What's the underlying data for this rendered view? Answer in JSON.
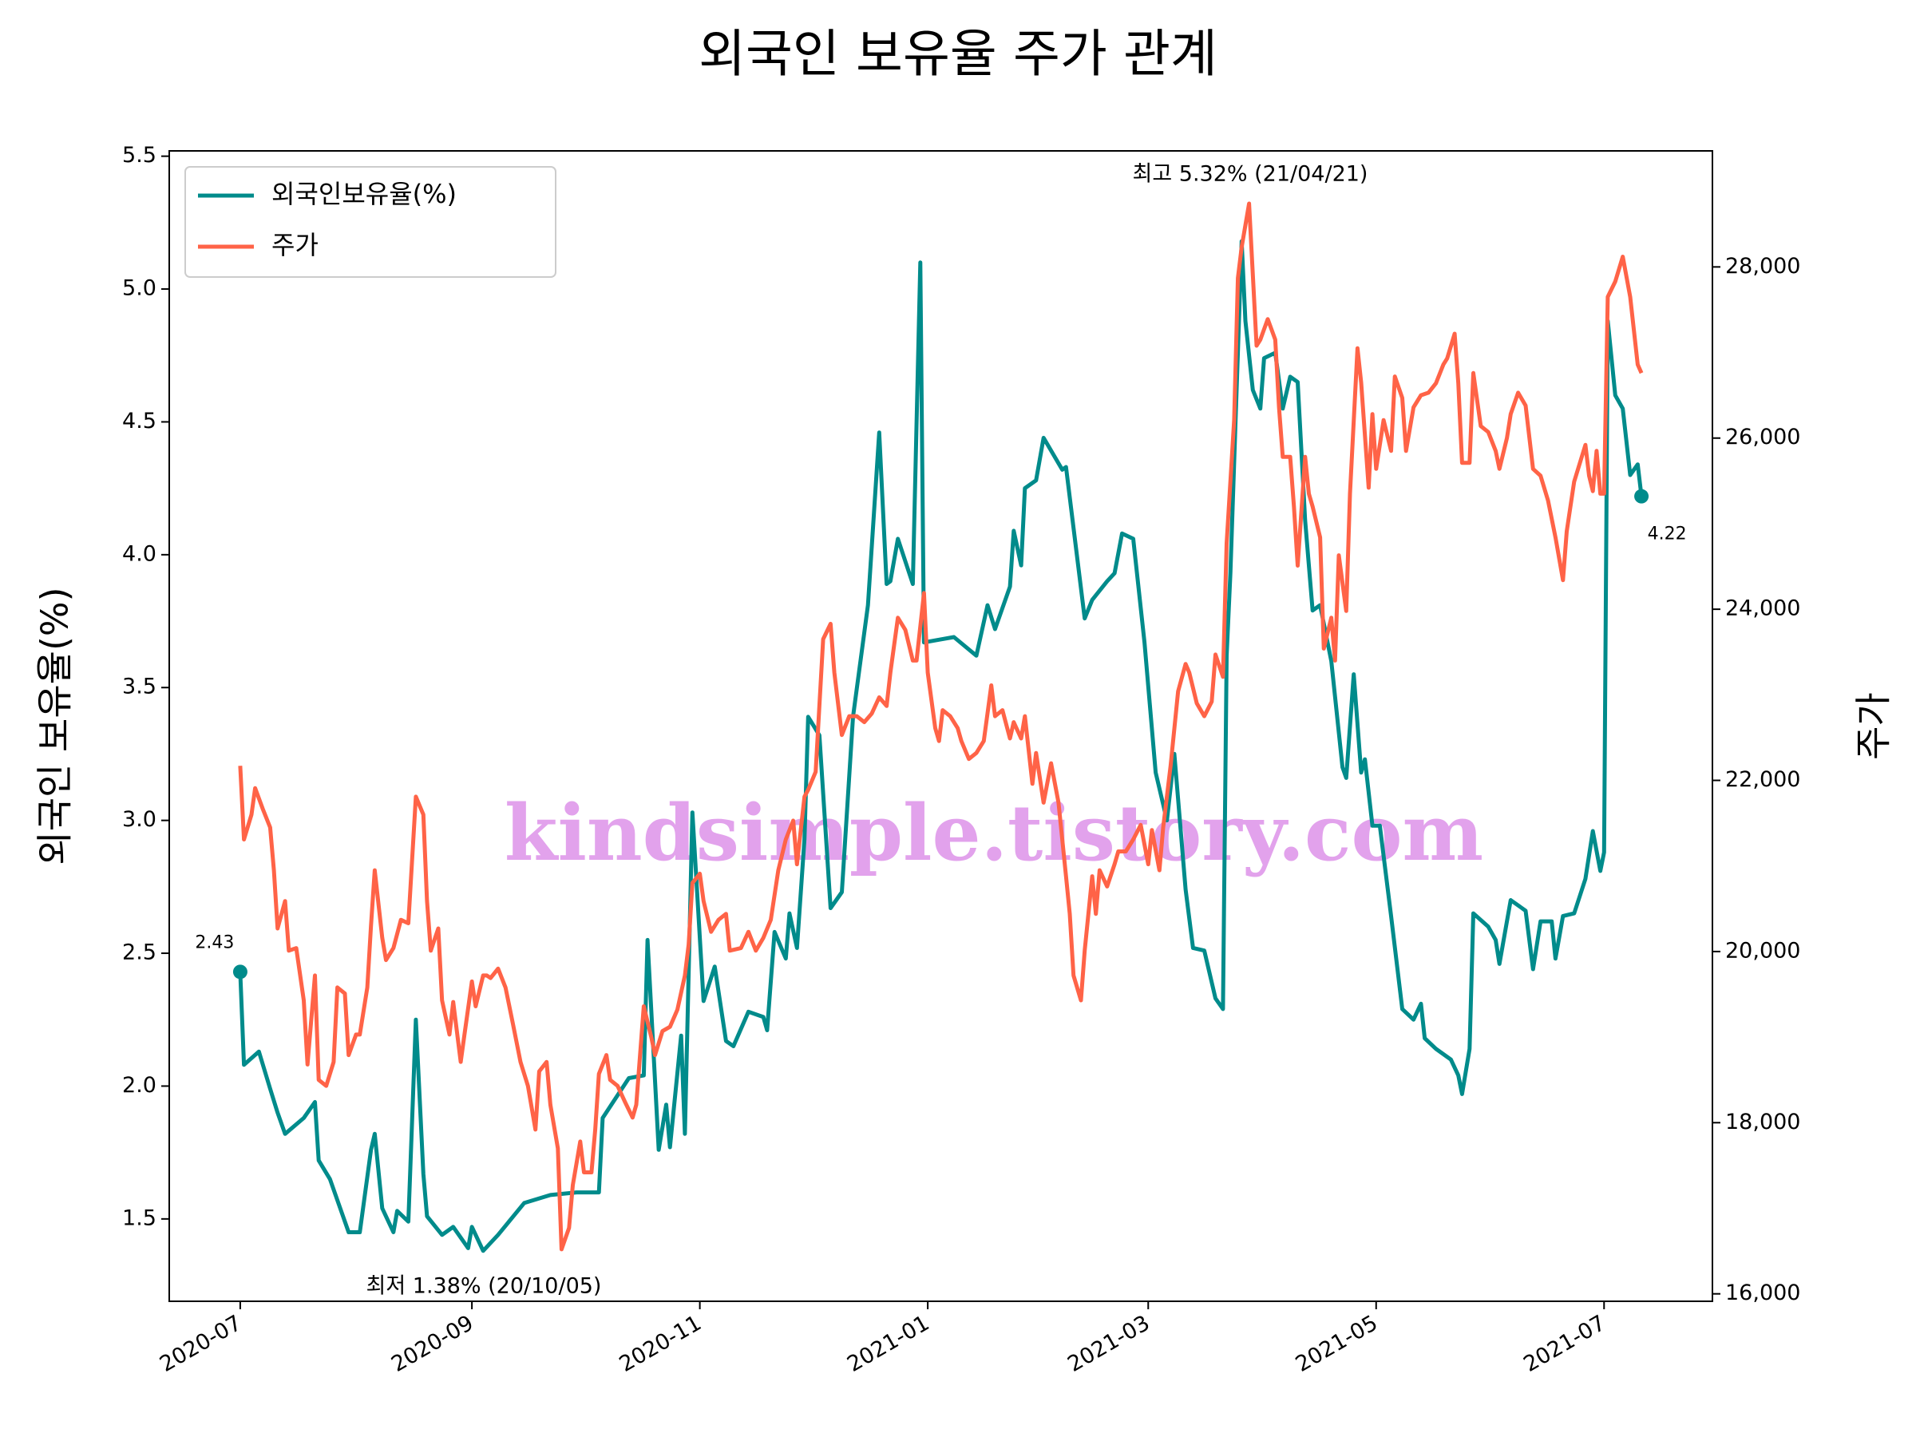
{
  "chart_data": {
    "type": "line",
    "title": "외국인 보유율 주가 관계",
    "ylabel": "외국인 보유율(%)",
    "y2label": "주가",
    "watermark": "kindsimple.tistory.com",
    "legend": "upper left",
    "xlim": [
      -19,
      394
    ],
    "xticks": [
      {
        "value": 0,
        "label": "2020-07"
      },
      {
        "value": 62,
        "label": "2020-09"
      },
      {
        "value": 123,
        "label": "2020-11"
      },
      {
        "value": 184,
        "label": "2021-01"
      },
      {
        "value": 243,
        "label": "2021-03"
      },
      {
        "value": 304,
        "label": "2021-05"
      },
      {
        "value": 365,
        "label": "2021-07"
      }
    ],
    "ylim": [
      1.19,
      5.52
    ],
    "yticks": [
      1.5,
      {
        "value": 2,
        "label": "2.0"
      },
      2.5,
      {
        "value": 3,
        "label": "3.0"
      },
      3.5,
      {
        "value": 4,
        "label": "4.0"
      },
      4.5,
      {
        "value": 5,
        "label": "5.0"
      },
      5.5
    ],
    "y2lim": [
      15913,
      29356
    ],
    "y2ticks": [
      {
        "value": 16000,
        "label": "16,000"
      },
      {
        "value": 18000,
        "label": "18,000"
      },
      {
        "value": 20000,
        "label": "20,000"
      },
      {
        "value": 22000,
        "label": "22,000"
      },
      {
        "value": 24000,
        "label": "24,000"
      },
      {
        "value": 26000,
        "label": "26,000"
      },
      {
        "value": 28000,
        "label": "28,000"
      }
    ],
    "series": [
      {
        "name": "외국인보유율(%)",
        "color": "#008b8b",
        "axis": "y",
        "x": [
          0,
          1,
          5,
          8,
          10,
          12,
          17,
          20,
          21,
          24,
          29,
          32,
          35,
          36,
          38,
          41,
          42,
          45,
          47,
          49,
          50,
          54,
          57,
          61,
          62,
          65,
          69,
          76,
          83,
          90,
          96,
          97,
          104,
          108,
          109,
          112,
          114,
          115,
          118,
          119,
          121,
          124,
          127,
          130,
          132,
          136,
          140,
          141,
          143,
          146,
          147,
          149,
          151,
          152,
          155,
          158,
          161,
          164,
          168,
          171,
          173,
          174,
          176,
          180,
          182,
          183,
          187,
          191,
          197,
          200,
          202,
          206,
          207,
          209,
          210,
          213,
          215,
          220,
          221,
          226,
          228,
          232,
          234,
          236,
          239,
          242,
          245,
          248,
          250,
          253,
          255,
          258,
          261,
          263,
          264,
          265,
          268,
          269,
          271,
          273,
          274,
          277,
          279,
          281,
          283,
          285,
          287,
          289,
          292,
          295,
          296,
          298,
          300,
          301,
          303,
          305,
          308,
          311,
          314,
          316,
          317,
          320,
          324,
          326,
          327,
          329,
          330,
          334,
          336,
          337,
          339,
          340,
          344,
          346,
          348,
          351,
          352,
          354,
          357,
          360,
          362,
          364,
          365,
          366,
          368,
          370,
          372,
          374,
          375
        ],
        "values": [
          2.43,
          2.08,
          2.13,
          1.99,
          1.9,
          1.82,
          1.88,
          1.94,
          1.72,
          1.65,
          1.45,
          1.45,
          1.76,
          1.82,
          1.54,
          1.45,
          1.53,
          1.49,
          2.25,
          1.67,
          1.51,
          1.44,
          1.47,
          1.39,
          1.47,
          1.38,
          1.44,
          1.56,
          1.59,
          1.6,
          1.6,
          1.88,
          2.03,
          2.04,
          2.55,
          1.76,
          1.93,
          1.77,
          2.19,
          1.82,
          3.03,
          2.32,
          2.45,
          2.17,
          2.15,
          2.28,
          2.26,
          2.21,
          2.58,
          2.48,
          2.65,
          2.52,
          2.93,
          3.39,
          3.32,
          2.67,
          2.73,
          3.39,
          3.81,
          4.46,
          3.89,
          3.9,
          4.06,
          3.89,
          5.1,
          3.67,
          3.68,
          3.69,
          3.62,
          3.81,
          3.72,
          3.88,
          4.09,
          3.96,
          4.25,
          4.28,
          4.44,
          4.32,
          4.33,
          3.76,
          3.83,
          3.9,
          3.93,
          4.08,
          4.06,
          3.67,
          3.18,
          3.0,
          3.25,
          2.74,
          2.52,
          2.51,
          2.33,
          2.29,
          3.62,
          3.93,
          5.18,
          4.88,
          4.62,
          4.55,
          4.74,
          4.76,
          4.55,
          4.67,
          4.65,
          4.13,
          3.79,
          3.81,
          3.6,
          3.2,
          3.16,
          3.55,
          3.18,
          3.23,
          2.98,
          2.98,
          2.64,
          2.29,
          2.25,
          2.31,
          2.18,
          2.14,
          2.1,
          2.04,
          1.97,
          2.14,
          2.65,
          2.6,
          2.55,
          2.46,
          2.62,
          2.7,
          2.66,
          2.44,
          2.62,
          2.62,
          2.48,
          2.64,
          2.65,
          2.78,
          2.96,
          2.81,
          2.88,
          4.88,
          4.6,
          4.55,
          4.3,
          4.34,
          4.22
        ]
      },
      {
        "name": "주가",
        "color": "#ff6347",
        "axis": "y2",
        "x": [
          0,
          1,
          3,
          4,
          6,
          8,
          9,
          10,
          12,
          13,
          15,
          17,
          18,
          20,
          21,
          23,
          25,
          26,
          28,
          29,
          31,
          32,
          34,
          35,
          36,
          38,
          39,
          41,
          43,
          45,
          47,
          49,
          50,
          51,
          53,
          54,
          56,
          57,
          59,
          60,
          62,
          63,
          65,
          66,
          67,
          69,
          71,
          73,
          75,
          77,
          79,
          80,
          82,
          83,
          85,
          86,
          88,
          89,
          91,
          92,
          94,
          95,
          96,
          98,
          99,
          101,
          103,
          105,
          106,
          108,
          110,
          111,
          113,
          115,
          117,
          119,
          120,
          121,
          123,
          124,
          126,
          128,
          130,
          131,
          134,
          136,
          138,
          140,
          142,
          144,
          146,
          148,
          149,
          151,
          152,
          154,
          156,
          158,
          159,
          161,
          163,
          165,
          167,
          169,
          171,
          173,
          174,
          176,
          178,
          180,
          181,
          183,
          184,
          186,
          187,
          188,
          190,
          192,
          193,
          195,
          197,
          199,
          201,
          202,
          204,
          206,
          207,
          209,
          210,
          212,
          213,
          215,
          217,
          219,
          221,
          222,
          223,
          225,
          226,
          228,
          229,
          230,
          232,
          234,
          235,
          237,
          239,
          241,
          243,
          244,
          246,
          247,
          249,
          251,
          253,
          254,
          256,
          258,
          260,
          261,
          263,
          264,
          266,
          267,
          268,
          270,
          272,
          273,
          275,
          277,
          278,
          279,
          281,
          282,
          283,
          285,
          286,
          287,
          289,
          290,
          292,
          293,
          294,
          296,
          297,
          299,
          300,
          302,
          303,
          304,
          306,
          308,
          309,
          311,
          312,
          314,
          316,
          318,
          320,
          322,
          323,
          325,
          326,
          327,
          329,
          330,
          332,
          334,
          336,
          337,
          339,
          340,
          342,
          344,
          346,
          348,
          350,
          352,
          354,
          355,
          357,
          360,
          361,
          362,
          363,
          364,
          365,
          366,
          368,
          370,
          372,
          374,
          375
        ],
        "values": [
          22170,
          21310,
          21600,
          21910,
          21670,
          21450,
          20950,
          20270,
          20590,
          20010,
          20040,
          19430,
          18680,
          19720,
          18500,
          18430,
          18710,
          19580,
          19510,
          18790,
          19030,
          19030,
          19580,
          20300,
          20950,
          20160,
          19900,
          20040,
          20370,
          20330,
          21810,
          21600,
          20590,
          20010,
          20270,
          19430,
          19030,
          19410,
          18710,
          19030,
          19650,
          19360,
          19720,
          19720,
          19690,
          19800,
          19580,
          19150,
          18710,
          18430,
          17920,
          18600,
          18710,
          18210,
          17700,
          16520,
          16770,
          17270,
          17780,
          17420,
          17420,
          17920,
          18570,
          18790,
          18500,
          18430,
          18240,
          18060,
          18210,
          19360,
          19000,
          18790,
          19070,
          19120,
          19320,
          19720,
          20080,
          20800,
          20910,
          20590,
          20230,
          20370,
          20440,
          20010,
          20040,
          20230,
          20010,
          20160,
          20370,
          20950,
          21310,
          21530,
          21020,
          21810,
          21890,
          22100,
          23650,
          23830,
          23260,
          22530,
          22750,
          22750,
          22680,
          22780,
          22970,
          22870,
          23260,
          23900,
          23760,
          23400,
          23400,
          24190,
          23260,
          22610,
          22460,
          22820,
          22750,
          22610,
          22460,
          22250,
          22320,
          22460,
          23110,
          22750,
          22820,
          22490,
          22680,
          22490,
          22750,
          21960,
          22320,
          21740,
          22200,
          21740,
          20880,
          20440,
          19720,
          19430,
          20010,
          20880,
          20440,
          20950,
          20760,
          21020,
          21170,
          21170,
          21310,
          21480,
          21020,
          21420,
          20950,
          21450,
          22170,
          23040,
          23360,
          23260,
          22900,
          22750,
          22920,
          23470,
          23210,
          24770,
          26210,
          27870,
          28230,
          28740,
          27080,
          27150,
          27390,
          27150,
          26360,
          25780,
          25780,
          25200,
          24510,
          25780,
          25350,
          25200,
          24840,
          23540,
          23900,
          23400,
          24630,
          23980,
          25350,
          27050,
          26650,
          25420,
          26280,
          25640,
          26210,
          25850,
          26720,
          26470,
          25850,
          26360,
          26500,
          26530,
          26640,
          26860,
          26930,
          27220,
          26640,
          25710,
          25710,
          26760,
          26140,
          26070,
          25850,
          25640,
          26000,
          26280,
          26530,
          26380,
          25640,
          25560,
          25270,
          24840,
          24340,
          24910,
          25490,
          25920,
          25560,
          25380,
          25850,
          25350,
          25350,
          27650,
          27830,
          28120,
          27650,
          26860,
          26760
        ]
      }
    ],
    "annotations": [
      {
        "text": "2.43",
        "color": "#008b8b"
      },
      {
        "text": "4.22",
        "color": "#008b8b"
      },
      {
        "text": "최저 1.38% (20/10/05)",
        "color": "#0000ff"
      },
      {
        "text": "최고 5.32% (21/04/21)",
        "color": "#ff0000"
      }
    ]
  }
}
